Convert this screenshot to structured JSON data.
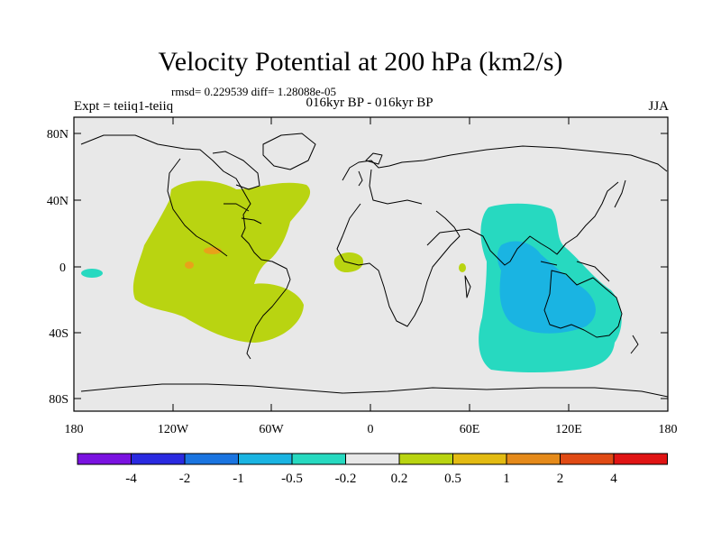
{
  "map": {
    "title": "Velocity Potential at 200 hPa (km2/s)",
    "stats": "rmsd= 0.229539 diff= 1.28088e-05",
    "experiment": "Expt = teiiq1-teiiq",
    "period": "016kyr BP - 016kyr BP",
    "season": "JJA",
    "lat_labels": [
      "80N",
      "40N",
      "0",
      "40S",
      "80S"
    ],
    "lon_labels": [
      "180",
      "120W",
      "60W",
      "0",
      "60E",
      "120E",
      "180"
    ],
    "background_color": "#e8e8e8",
    "regions": [
      {
        "name": "western-hemisphere-positive-anomaly",
        "category": "0.2 to 0.5",
        "color": "#b9d411"
      },
      {
        "name": "central-america-local-maximum-a",
        "category": "1 to 2",
        "color": "#e8a21a"
      },
      {
        "name": "central-america-local-maximum-b",
        "category": "1 to 2",
        "color": "#e8a21a"
      },
      {
        "name": "west-africa-positive-patch",
        "category": "0.2 to 0.5",
        "color": "#b9d411"
      },
      {
        "name": "east-africa-positive-patch",
        "category": "0.2 to 0.5",
        "color": "#b9d411"
      },
      {
        "name": "indian-ocean-negative-anomaly",
        "category": "-0.5 to -0.2",
        "color": "#27d9c0"
      },
      {
        "name": "maritime-continent-negative-core",
        "category": "-1 to -0.5",
        "color": "#1ab4e2"
      },
      {
        "name": "central-pacific-negative-patch",
        "category": "-0.5 to -0.2",
        "color": "#27d9c0"
      }
    ]
  },
  "colorbar": {
    "colors": [
      "#7a12e0",
      "#2a2ae0",
      "#1a74e0",
      "#1ab4e2",
      "#27d9c0",
      "#e8e8e8",
      "#b9d411",
      "#e3bb12",
      "#e58a1a",
      "#e04a14",
      "#e01414"
    ],
    "labels": [
      "-4",
      "-2",
      "-1",
      "-0.5",
      "-0.2",
      "0.2",
      "0.5",
      "1",
      "2",
      "4"
    ]
  }
}
